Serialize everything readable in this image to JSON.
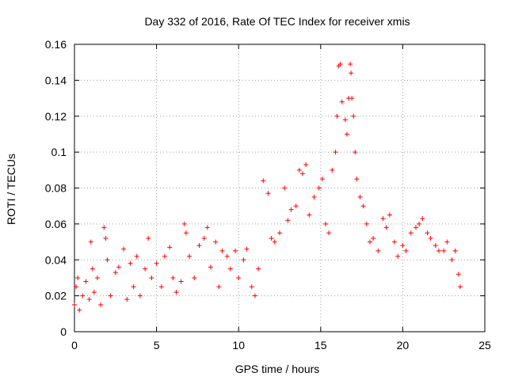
{
  "chart_data": {
    "type": "scatter",
    "title": "Day 332 of 2016, Rate Of TEC Index for receiver xmis",
    "xlabel": "GPS time / hours",
    "ylabel": "ROTI / TECUs",
    "xlim": [
      0,
      25
    ],
    "ylim": [
      0,
      0.16
    ],
    "xticks": [
      0,
      5,
      10,
      15,
      20,
      25
    ],
    "yticks": [
      0,
      0.02,
      0.04,
      0.06,
      0.08,
      0.1,
      0.12,
      0.14,
      0.16
    ],
    "xtick_labels": [
      "0",
      "5",
      "10",
      "15",
      "20",
      "25"
    ],
    "ytick_labels": [
      "0",
      "0.02",
      "0.04",
      "0.06",
      "0.08",
      "0.1",
      "0.12",
      "0.14",
      "0.16"
    ],
    "grid": true,
    "marker": "+",
    "color": "#ff0000",
    "series": [
      {
        "points": [
          [
            0.0,
            0.015
          ],
          [
            0.1,
            0.025
          ],
          [
            0.2,
            0.03
          ],
          [
            0.3,
            0.012
          ],
          [
            0.5,
            0.02
          ],
          [
            0.7,
            0.028
          ],
          [
            0.9,
            0.018
          ],
          [
            1.0,
            0.05
          ],
          [
            1.1,
            0.035
          ],
          [
            1.2,
            0.022
          ],
          [
            1.4,
            0.03
          ],
          [
            1.6,
            0.015
          ],
          [
            1.8,
            0.058
          ],
          [
            1.9,
            0.052
          ],
          [
            2.0,
            0.04
          ],
          [
            2.2,
            0.02
          ],
          [
            2.5,
            0.033
          ],
          [
            2.7,
            0.036
          ],
          [
            3.0,
            0.046
          ],
          [
            3.2,
            0.018
          ],
          [
            3.4,
            0.038
          ],
          [
            3.6,
            0.025
          ],
          [
            3.8,
            0.042
          ],
          [
            4.0,
            0.02
          ],
          [
            4.3,
            0.035
          ],
          [
            4.5,
            0.052
          ],
          [
            4.7,
            0.03
          ],
          [
            5.0,
            0.038
          ],
          [
            5.3,
            0.025
          ],
          [
            5.5,
            0.042
          ],
          [
            5.8,
            0.047
          ],
          [
            6.0,
            0.03
          ],
          [
            6.2,
            0.022
          ],
          [
            6.5,
            0.028
          ],
          [
            6.7,
            0.06
          ],
          [
            6.8,
            0.055
          ],
          [
            7.0,
            0.042
          ],
          [
            7.3,
            0.03
          ],
          [
            7.6,
            0.048
          ],
          [
            7.9,
            0.052
          ],
          [
            8.1,
            0.058
          ],
          [
            8.3,
            0.036
          ],
          [
            8.6,
            0.05
          ],
          [
            8.8,
            0.025
          ],
          [
            9.0,
            0.045
          ],
          [
            9.3,
            0.042
          ],
          [
            9.5,
            0.035
          ],
          [
            9.8,
            0.045
          ],
          [
            10.0,
            0.03
          ],
          [
            10.3,
            0.04
          ],
          [
            10.5,
            0.046
          ],
          [
            10.8,
            0.025
          ],
          [
            11.0,
            0.02
          ],
          [
            11.2,
            0.035
          ],
          [
            11.5,
            0.084
          ],
          [
            11.8,
            0.077
          ],
          [
            12.0,
            0.052
          ],
          [
            12.2,
            0.05
          ],
          [
            12.5,
            0.055
          ],
          [
            12.8,
            0.08
          ],
          [
            13.0,
            0.062
          ],
          [
            13.2,
            0.068
          ],
          [
            13.5,
            0.07
          ],
          [
            13.7,
            0.09
          ],
          [
            13.9,
            0.088
          ],
          [
            14.1,
            0.093
          ],
          [
            14.3,
            0.065
          ],
          [
            14.6,
            0.075
          ],
          [
            14.9,
            0.08
          ],
          [
            15.1,
            0.085
          ],
          [
            15.3,
            0.06
          ],
          [
            15.5,
            0.055
          ],
          [
            15.7,
            0.09
          ],
          [
            15.9,
            0.1
          ],
          [
            16.0,
            0.12
          ],
          [
            16.1,
            0.148
          ],
          [
            16.2,
            0.149
          ],
          [
            16.3,
            0.128
          ],
          [
            16.5,
            0.118
          ],
          [
            16.6,
            0.11
          ],
          [
            16.7,
            0.13
          ],
          [
            16.8,
            0.149
          ],
          [
            16.85,
            0.144
          ],
          [
            16.9,
            0.13
          ],
          [
            17.0,
            0.12
          ],
          [
            17.1,
            0.1
          ],
          [
            17.2,
            0.085
          ],
          [
            17.4,
            0.075
          ],
          [
            17.6,
            0.07
          ],
          [
            17.8,
            0.06
          ],
          [
            18.0,
            0.05
          ],
          [
            18.2,
            0.052
          ],
          [
            18.5,
            0.045
          ],
          [
            18.8,
            0.063
          ],
          [
            19.0,
            0.058
          ],
          [
            19.2,
            0.065
          ],
          [
            19.5,
            0.05
          ],
          [
            19.7,
            0.042
          ],
          [
            20.0,
            0.048
          ],
          [
            20.2,
            0.045
          ],
          [
            20.5,
            0.055
          ],
          [
            20.8,
            0.058
          ],
          [
            21.0,
            0.06
          ],
          [
            21.2,
            0.063
          ],
          [
            21.5,
            0.055
          ],
          [
            21.7,
            0.052
          ],
          [
            22.0,
            0.048
          ],
          [
            22.2,
            0.045
          ],
          [
            22.5,
            0.045
          ],
          [
            22.7,
            0.05
          ],
          [
            23.0,
            0.04
          ],
          [
            23.2,
            0.045
          ],
          [
            23.4,
            0.032
          ],
          [
            23.5,
            0.025
          ]
        ]
      }
    ]
  }
}
